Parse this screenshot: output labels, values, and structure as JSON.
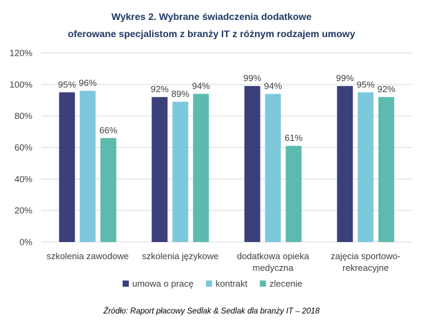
{
  "chart_data": {
    "type": "bar",
    "title_lines": [
      "Wykres 2. Wybrane świadczenia dodatkowe",
      "oferowane specjalistom z branży IT z różnym rodzajem umowy"
    ],
    "categories": [
      [
        "szkolenia zawodowe"
      ],
      [
        "szkolenia językowe"
      ],
      [
        "dodatkowa opieka",
        "medyczna"
      ],
      [
        "zajęcia sportowo-",
        "rekreacyjne"
      ]
    ],
    "series": [
      {
        "name": "umowa o pracę",
        "color": "#3B3F7A",
        "values": [
          95,
          92,
          99,
          99
        ],
        "labels": [
          "95%",
          "92%",
          "99%",
          "99%"
        ]
      },
      {
        "name": "kontrakt",
        "color": "#7EC8DC",
        "values": [
          96,
          89,
          94,
          95
        ],
        "labels": [
          "96%",
          "89%",
          "94%",
          "95%"
        ]
      },
      {
        "name": "zlecenie",
        "color": "#5DBAAE",
        "values": [
          66,
          94,
          61,
          92
        ],
        "labels": [
          "66%",
          "94%",
          "61%",
          "92%"
        ]
      }
    ],
    "ylim": [
      0,
      120
    ],
    "yticks": [
      0,
      20,
      40,
      60,
      80,
      100,
      120
    ],
    "ytick_labels": [
      "0%",
      "20%",
      "40%",
      "60%",
      "80%",
      "100%",
      "120%"
    ],
    "grid": true,
    "legend_position": "bottom",
    "source": "Źródło: Raport płacowy Sedlak & Sedlak dla branży IT – 2018"
  }
}
